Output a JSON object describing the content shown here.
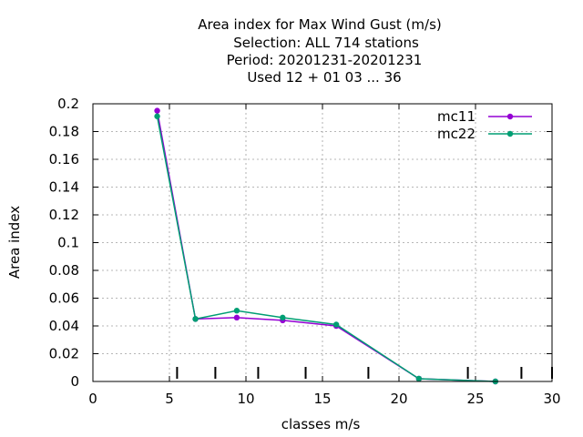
{
  "chart_data": {
    "type": "line",
    "title_lines": [
      "Area index  for Max Wind Gust (m/s)",
      "Selection: ALL    714 stations",
      "Period: 20201231-20201231",
      "Used  12 + 01 03 ... 36"
    ],
    "xlabel": "classes m/s",
    "ylabel": "Area index",
    "xlim": [
      0,
      30
    ],
    "ylim": [
      0,
      0.2
    ],
    "xticks": [
      0,
      5,
      10,
      15,
      20,
      25,
      30
    ],
    "yticks": [
      0,
      0.02,
      0.04,
      0.06,
      0.08,
      0.1,
      0.12,
      0.14,
      0.16,
      0.18,
      0.2
    ],
    "xtick_labels": [
      "0",
      "5",
      "10",
      "15",
      "20",
      "25",
      "30"
    ],
    "ytick_labels": [
      "0",
      "0.02",
      "0.04",
      "0.06",
      "0.08",
      "0.1",
      "0.12",
      "0.14",
      "0.16",
      "0.18",
      "0.2"
    ],
    "class_boundaries": [
      5.5,
      8,
      10.8,
      13.9,
      18,
      24.5,
      28,
      30
    ],
    "grid": true,
    "legend_position": "top-right",
    "series": [
      {
        "name": "mc11",
        "color": "#9400d3",
        "x": [
          4.2,
          6.7,
          9.4,
          12.4,
          15.9,
          21.3,
          26.3
        ],
        "y": [
          0.195,
          0.045,
          0.046,
          0.044,
          0.04,
          0.002,
          0.0
        ]
      },
      {
        "name": "mc22",
        "color": "#009e73",
        "x": [
          4.2,
          6.7,
          9.4,
          12.4,
          15.9,
          21.3,
          26.3
        ],
        "y": [
          0.191,
          0.045,
          0.051,
          0.046,
          0.041,
          0.002,
          0.0
        ]
      }
    ]
  }
}
